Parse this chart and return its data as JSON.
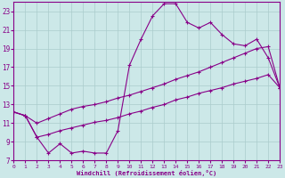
{
  "xlabel": "Windchill (Refroidissement éolien,°C)",
  "bg_color": "#cce8e8",
  "grid_color": "#aacccc",
  "line_color": "#880088",
  "xlim": [
    0,
    23
  ],
  "ylim": [
    7,
    24
  ],
  "yticks": [
    7,
    9,
    11,
    13,
    15,
    17,
    19,
    21,
    23
  ],
  "xticks": [
    0,
    1,
    2,
    3,
    4,
    5,
    6,
    7,
    8,
    9,
    10,
    11,
    12,
    13,
    14,
    15,
    16,
    17,
    18,
    19,
    20,
    21,
    22,
    23
  ],
  "curves": [
    [
      12.2,
      11.8,
      9.5,
      7.8,
      8.8,
      7.8,
      8.0,
      7.8,
      7.8,
      10.2,
      17.2,
      20.0,
      22.5,
      23.8,
      23.8,
      21.8,
      21.2,
      21.8,
      20.5,
      19.5,
      19.3,
      20.0,
      18.0,
      14.8
    ],
    [
      12.2,
      11.8,
      11.0,
      11.5,
      12.0,
      12.5,
      12.8,
      13.0,
      13.3,
      13.7,
      14.0,
      14.4,
      14.8,
      15.2,
      15.7,
      16.1,
      16.5,
      17.0,
      17.5,
      18.0,
      18.5,
      19.0,
      19.2,
      14.8
    ],
    [
      12.2,
      11.8,
      9.5,
      9.8,
      10.2,
      10.5,
      10.8,
      11.1,
      11.3,
      11.6,
      12.0,
      12.3,
      12.7,
      13.0,
      13.5,
      13.8,
      14.2,
      14.5,
      14.8,
      15.2,
      15.5,
      15.8,
      16.2,
      14.8
    ]
  ]
}
